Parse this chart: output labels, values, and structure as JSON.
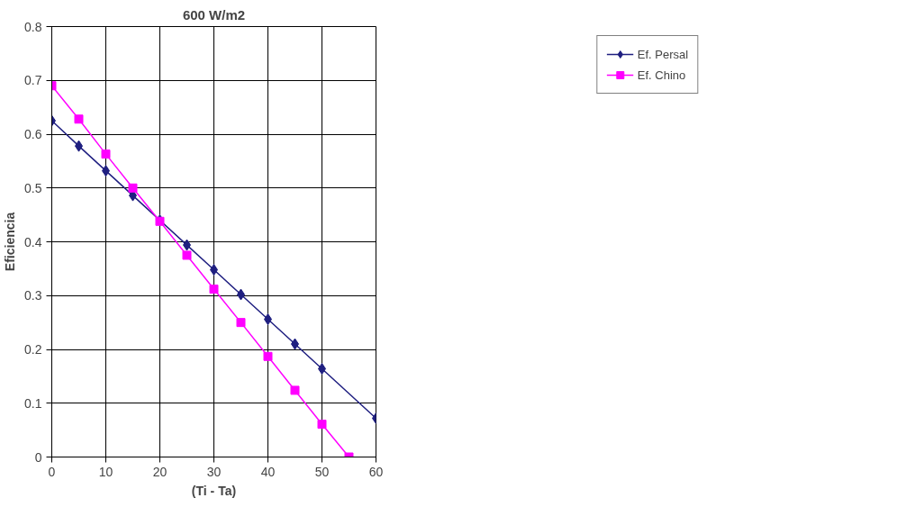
{
  "chart_data": {
    "type": "line",
    "title": "600 W/m2",
    "xlabel": "(Ti - Ta)",
    "ylabel": "Eficiencia",
    "xlim": [
      0,
      60
    ],
    "ylim": [
      0,
      0.8
    ],
    "xticks": [
      0,
      10,
      20,
      30,
      40,
      50,
      60
    ],
    "yticks": [
      0,
      0.1,
      0.2,
      0.3,
      0.4,
      0.5,
      0.6,
      0.7,
      0.8
    ],
    "grid": true,
    "legend": "top right",
    "line_style": "solid",
    "series": [
      {
        "name": "Ef. Persal",
        "color": "#1f1f80",
        "marker": "diamond",
        "x": [
          0,
          5,
          10,
          15,
          20,
          25,
          30,
          35,
          40,
          45,
          50,
          60
        ],
        "values": [
          0.625,
          0.578,
          0.532,
          0.486,
          0.44,
          0.394,
          0.348,
          0.302,
          0.256,
          0.21,
          0.164,
          0.072
        ]
      },
      {
        "name": "Ef. Chino",
        "color": "#ff00ff",
        "marker": "square",
        "x": [
          0,
          5,
          10,
          15,
          20,
          25,
          30,
          35,
          40,
          45,
          50,
          55
        ],
        "values": [
          0.69,
          0.628,
          0.563,
          0.5,
          0.438,
          0.375,
          0.312,
          0.25,
          0.187,
          0.124,
          0.061,
          0
        ]
      }
    ]
  }
}
